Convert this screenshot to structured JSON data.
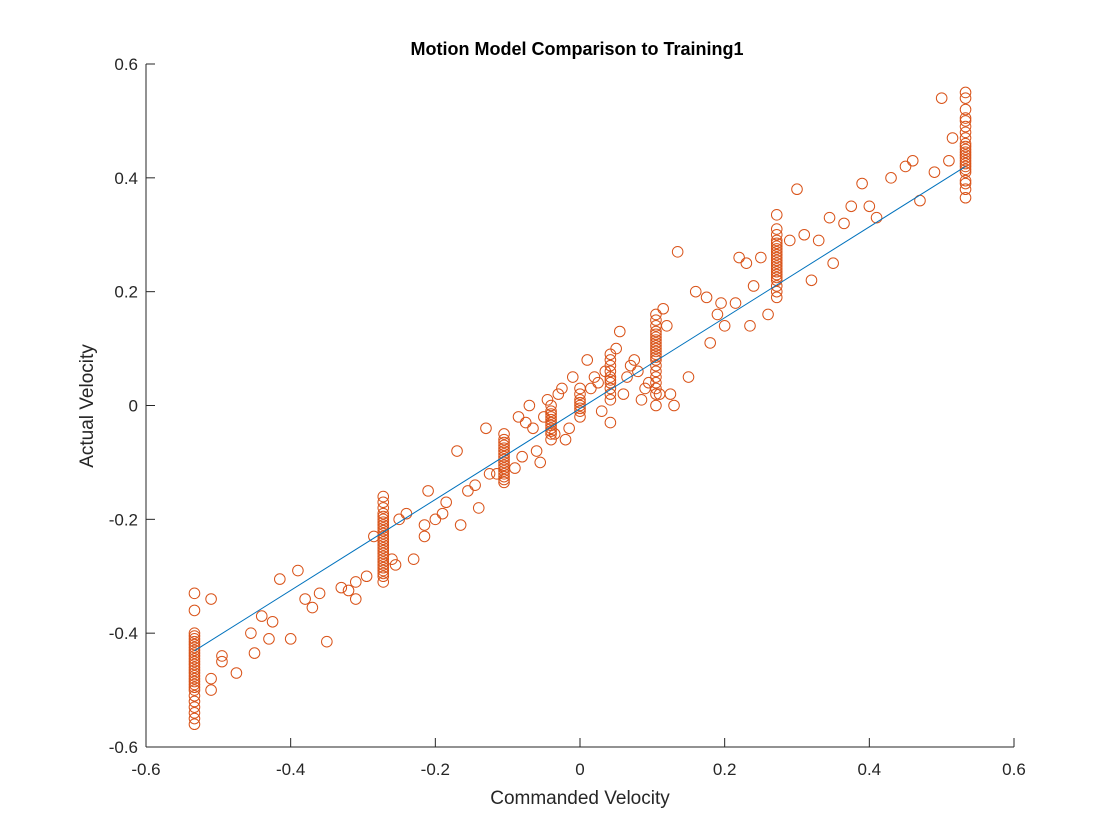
{
  "chart_data": {
    "type": "scatter",
    "title": "Motion Model Comparison to Training1",
    "xlabel": "Commanded Velocity",
    "ylabel": "Actual Velocity",
    "xlim": [
      -0.6,
      0.6
    ],
    "ylim": [
      -0.6,
      0.6
    ],
    "xticks": [
      -0.6,
      -0.4,
      -0.2,
      0,
      0.2,
      0.4,
      0.6
    ],
    "yticks": [
      -0.6,
      -0.4,
      -0.2,
      0,
      0.2,
      0.4,
      0.6
    ],
    "xtick_labels": [
      "-0.6",
      "-0.4",
      "-0.2",
      "0",
      "0.2",
      "0.4",
      "0.6"
    ],
    "ytick_labels": [
      "-0.6",
      "-0.4",
      "-0.2",
      "0",
      "0.2",
      "0.4",
      "0.6"
    ],
    "grid": false,
    "box": "left-bottom",
    "colors": {
      "scatter": "#D95319",
      "fit_line": "#0072BD",
      "axis": "#262626"
    },
    "fit_line": {
      "x": [
        -0.533,
        0.533
      ],
      "y": [
        -0.431,
        0.42
      ]
    },
    "series": [
      {
        "marker": "open-circle",
        "x": [
          -0.533,
          -0.533,
          -0.533,
          -0.533,
          -0.533,
          -0.533,
          -0.533,
          -0.533,
          -0.533,
          -0.533,
          -0.533,
          -0.533,
          -0.533,
          -0.533,
          -0.533,
          -0.533,
          -0.533,
          -0.533,
          -0.533,
          -0.533,
          -0.533,
          -0.533,
          -0.533,
          -0.533,
          -0.533,
          -0.533,
          -0.533,
          -0.533,
          -0.533,
          -0.272,
          -0.272,
          -0.272,
          -0.272,
          -0.272,
          -0.272,
          -0.272,
          -0.272,
          -0.272,
          -0.272,
          -0.272,
          -0.272,
          -0.272,
          -0.272,
          -0.272,
          -0.272,
          -0.272,
          -0.272,
          -0.272,
          -0.272,
          -0.272,
          -0.272,
          -0.272,
          -0.272,
          -0.272,
          -0.272,
          -0.272,
          -0.105,
          -0.105,
          -0.105,
          -0.105,
          -0.105,
          -0.105,
          -0.105,
          -0.105,
          -0.105,
          -0.105,
          -0.105,
          -0.105,
          -0.105,
          -0.105,
          -0.105,
          -0.105,
          -0.105,
          -0.04,
          -0.04,
          -0.04,
          -0.04,
          -0.04,
          -0.04,
          -0.04,
          -0.04,
          -0.04,
          -0.04,
          -0.04,
          0.0,
          0.0,
          0.0,
          0.0,
          0.0,
          0.0,
          0.0,
          0.0,
          0.042,
          0.042,
          0.042,
          0.042,
          0.042,
          0.042,
          0.042,
          0.042,
          0.042,
          0.042,
          0.042,
          0.105,
          0.105,
          0.105,
          0.105,
          0.105,
          0.105,
          0.105,
          0.105,
          0.105,
          0.105,
          0.105,
          0.105,
          0.105,
          0.105,
          0.105,
          0.105,
          0.105,
          0.105,
          0.105,
          0.105,
          0.105,
          0.272,
          0.272,
          0.272,
          0.272,
          0.272,
          0.272,
          0.272,
          0.272,
          0.272,
          0.272,
          0.272,
          0.272,
          0.272,
          0.272,
          0.272,
          0.272,
          0.272,
          0.272,
          0.272,
          0.272,
          0.272,
          0.533,
          0.533,
          0.533,
          0.533,
          0.533,
          0.533,
          0.533,
          0.533,
          0.533,
          0.533,
          0.533,
          0.533,
          0.533,
          0.533,
          0.533,
          0.533,
          0.533,
          0.533,
          0.533,
          0.533,
          0.533,
          0.533,
          0.533,
          -0.51,
          -0.51,
          -0.51,
          -0.495,
          -0.495,
          -0.475,
          -0.455,
          -0.45,
          -0.44,
          -0.43,
          -0.425,
          -0.415,
          -0.4,
          -0.39,
          -0.38,
          -0.37,
          -0.36,
          -0.35,
          -0.33,
          -0.32,
          -0.31,
          -0.31,
          -0.295,
          -0.285,
          -0.26,
          -0.255,
          -0.25,
          -0.24,
          -0.23,
          -0.215,
          -0.215,
          -0.21,
          -0.2,
          -0.19,
          -0.185,
          -0.17,
          -0.165,
          -0.155,
          -0.145,
          -0.14,
          -0.13,
          -0.125,
          -0.115,
          -0.09,
          -0.085,
          -0.08,
          -0.075,
          -0.07,
          -0.065,
          -0.06,
          -0.055,
          -0.05,
          -0.045,
          -0.035,
          -0.03,
          -0.025,
          -0.02,
          -0.015,
          -0.01,
          0.01,
          0.015,
          0.02,
          0.025,
          0.03,
          0.035,
          0.05,
          0.055,
          0.06,
          0.065,
          0.07,
          0.075,
          0.08,
          0.085,
          0.09,
          0.095,
          0.11,
          0.115,
          0.12,
          0.125,
          0.13,
          0.135,
          0.15,
          0.16,
          0.175,
          0.18,
          0.19,
          0.195,
          0.2,
          0.215,
          0.22,
          0.23,
          0.235,
          0.24,
          0.25,
          0.26,
          0.29,
          0.3,
          0.31,
          0.32,
          0.33,
          0.345,
          0.35,
          0.365,
          0.375,
          0.39,
          0.4,
          0.41,
          0.43,
          0.45,
          0.46,
          0.47,
          0.49,
          0.5,
          0.51,
          0.515
        ],
        "y": [
          -0.33,
          -0.36,
          -0.4,
          -0.41,
          -0.42,
          -0.43,
          -0.44,
          -0.45,
          -0.46,
          -0.47,
          -0.48,
          -0.49,
          -0.5,
          -0.51,
          -0.52,
          -0.53,
          -0.54,
          -0.55,
          -0.56,
          -0.405,
          -0.415,
          -0.425,
          -0.435,
          -0.445,
          -0.455,
          -0.465,
          -0.475,
          -0.485,
          -0.495,
          -0.16,
          -0.17,
          -0.18,
          -0.19,
          -0.2,
          -0.21,
          -0.22,
          -0.23,
          -0.24,
          -0.25,
          -0.26,
          -0.27,
          -0.28,
          -0.29,
          -0.3,
          -0.31,
          -0.195,
          -0.205,
          -0.215,
          -0.225,
          -0.235,
          -0.245,
          -0.255,
          -0.265,
          -0.275,
          -0.285,
          -0.295,
          -0.05,
          -0.06,
          -0.07,
          -0.08,
          -0.09,
          -0.1,
          -0.11,
          -0.12,
          -0.13,
          -0.065,
          -0.075,
          -0.085,
          -0.095,
          -0.105,
          -0.115,
          -0.125,
          -0.135,
          0.0,
          -0.01,
          -0.02,
          -0.03,
          -0.04,
          -0.05,
          -0.06,
          -0.015,
          -0.025,
          -0.035,
          -0.045,
          0.03,
          0.02,
          0.01,
          0.0,
          -0.01,
          -0.02,
          0.005,
          -0.005,
          0.09,
          0.08,
          0.07,
          0.06,
          0.05,
          0.04,
          0.03,
          0.02,
          0.01,
          -0.03,
          0.045,
          0.16,
          0.15,
          0.14,
          0.13,
          0.12,
          0.11,
          0.1,
          0.09,
          0.08,
          0.07,
          0.06,
          0.05,
          0.04,
          0.03,
          0.02,
          0.0,
          0.125,
          0.115,
          0.105,
          0.095,
          0.085,
          0.335,
          0.31,
          0.3,
          0.29,
          0.28,
          0.27,
          0.26,
          0.25,
          0.24,
          0.23,
          0.22,
          0.21,
          0.2,
          0.19,
          0.285,
          0.275,
          0.265,
          0.255,
          0.245,
          0.235,
          0.225,
          0.55,
          0.54,
          0.52,
          0.5,
          0.49,
          0.48,
          0.47,
          0.46,
          0.45,
          0.44,
          0.43,
          0.42,
          0.41,
          0.39,
          0.38,
          0.365,
          0.455,
          0.445,
          0.435,
          0.425,
          0.415,
          0.505,
          0.395,
          -0.34,
          -0.48,
          -0.5,
          -0.44,
          -0.45,
          -0.47,
          -0.4,
          -0.435,
          -0.37,
          -0.41,
          -0.38,
          -0.305,
          -0.41,
          -0.29,
          -0.34,
          -0.355,
          -0.33,
          -0.415,
          -0.32,
          -0.325,
          -0.31,
          -0.34,
          -0.3,
          -0.23,
          -0.27,
          -0.28,
          -0.2,
          -0.19,
          -0.27,
          -0.21,
          -0.23,
          -0.15,
          -0.2,
          -0.19,
          -0.17,
          -0.08,
          -0.21,
          -0.15,
          -0.14,
          -0.18,
          -0.04,
          -0.12,
          -0.12,
          -0.11,
          -0.02,
          -0.09,
          -0.03,
          0.0,
          -0.04,
          -0.08,
          -0.1,
          -0.02,
          0.01,
          -0.05,
          0.02,
          0.03,
          -0.06,
          -0.04,
          0.05,
          0.08,
          0.03,
          0.05,
          0.04,
          -0.01,
          0.06,
          0.1,
          0.13,
          0.02,
          0.05,
          0.07,
          0.08,
          0.06,
          0.01,
          0.03,
          0.04,
          0.02,
          0.17,
          0.14,
          0.02,
          0.0,
          0.27,
          0.05,
          0.2,
          0.19,
          0.11,
          0.16,
          0.18,
          0.14,
          0.18,
          0.26,
          0.25,
          0.14,
          0.21,
          0.26,
          0.16,
          0.29,
          0.38,
          0.3,
          0.22,
          0.29,
          0.33,
          0.25,
          0.32,
          0.35,
          0.39,
          0.35,
          0.33,
          0.4,
          0.42,
          0.43,
          0.36,
          0.41,
          0.54,
          0.43,
          0.47
        ]
      }
    ]
  }
}
